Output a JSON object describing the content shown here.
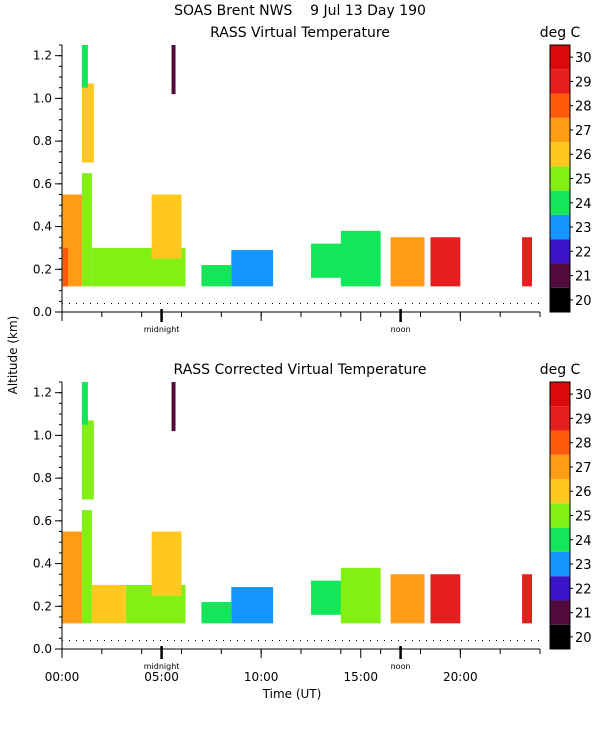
{
  "chart_data": {
    "type": "heatmap",
    "title": "SOAS Brent NWS    9 Jul 13 Day 190",
    "ylabel": "Altitude (km)",
    "xlabel": "Time (UT)",
    "xlim": [
      0,
      24
    ],
    "ylim": [
      0,
      1.25
    ],
    "x_ticks": [
      "00:00",
      "05:00",
      "10:00",
      "15:00",
      "20:00"
    ],
    "x_tick_values": [
      0,
      5,
      10,
      15,
      20
    ],
    "y_ticks": [
      "0.0",
      "0.2",
      "0.4",
      "0.6",
      "0.8",
      "1.0",
      "1.2"
    ],
    "y_tick_values": [
      0,
      0.2,
      0.4,
      0.6,
      0.8,
      1.0,
      1.2
    ],
    "markers": [
      {
        "label": "midnight",
        "x": 5.0
      },
      {
        "label": "noon",
        "x": 17.0
      }
    ],
    "colorbar": {
      "label": "deg C",
      "ticks": [
        "20",
        "21",
        "22",
        "23",
        "24",
        "25",
        "26",
        "27",
        "28",
        "29",
        "30"
      ],
      "colors": [
        "#000000",
        "#500a3c",
        "#3c14c8",
        "#1496ff",
        "#14e65a",
        "#82f014",
        "#ffc81e",
        "#ff9b14",
        "#ff5a0a",
        "#e61e1e",
        "#dc0a0a"
      ]
    },
    "panels": [
      {
        "title": "RASS Virtual Temperature",
        "cells": [
          {
            "x": [
              0.0,
              1.0
            ],
            "y": [
              0.12,
              0.55
            ],
            "value": 27.5
          },
          {
            "x": [
              0.05,
              0.3
            ],
            "y": [
              0.12,
              0.3
            ],
            "value": 28.2
          },
          {
            "x": [
              1.0,
              1.5
            ],
            "y": [
              0.12,
              0.65
            ],
            "value": 25.0
          },
          {
            "x": [
              1.5,
              6.2
            ],
            "y": [
              0.12,
              0.3
            ],
            "value": 25.2
          },
          {
            "x": [
              4.5,
              6.0
            ],
            "y": [
              0.25,
              0.55
            ],
            "value": 26.8
          },
          {
            "x": [
              1.0,
              1.6
            ],
            "y": [
              0.7,
              1.07
            ],
            "value": 26.5
          },
          {
            "x": [
              1.0,
              1.3
            ],
            "y": [
              1.05,
              1.25
            ],
            "value": 24.0
          },
          {
            "x": [
              5.5,
              5.7
            ],
            "y": [
              1.02,
              1.25
            ],
            "value": 21.5
          },
          {
            "x": [
              7.0,
              8.5
            ],
            "y": [
              0.12,
              0.22
            ],
            "value": 24.2
          },
          {
            "x": [
              8.5,
              10.6
            ],
            "y": [
              0.12,
              0.29
            ],
            "value": 23.2
          },
          {
            "x": [
              12.5,
              14.5
            ],
            "y": [
              0.16,
              0.32
            ],
            "value": 24.3
          },
          {
            "x": [
              14.0,
              16.0
            ],
            "y": [
              0.12,
              0.38
            ],
            "value": 24.5
          },
          {
            "x": [
              16.5,
              18.2
            ],
            "y": [
              0.12,
              0.35
            ],
            "value": 27.3
          },
          {
            "x": [
              18.5,
              20.0
            ],
            "y": [
              0.12,
              0.35
            ],
            "value": 29.4
          },
          {
            "x": [
              23.1,
              23.6
            ],
            "y": [
              0.12,
              0.35
            ],
            "value": 29.2
          }
        ]
      },
      {
        "title": "RASS Corrected Virtual Temperature",
        "cells": [
          {
            "x": [
              0.0,
              1.0
            ],
            "y": [
              0.12,
              0.55
            ],
            "value": 27.6
          },
          {
            "x": [
              1.0,
              1.5
            ],
            "y": [
              0.12,
              0.65
            ],
            "value": 25.0
          },
          {
            "x": [
              1.5,
              3.2
            ],
            "y": [
              0.12,
              0.3
            ],
            "value": 26.4
          },
          {
            "x": [
              3.2,
              6.2
            ],
            "y": [
              0.12,
              0.3
            ],
            "value": 25.2
          },
          {
            "x": [
              4.5,
              6.0
            ],
            "y": [
              0.25,
              0.55
            ],
            "value": 26.8
          },
          {
            "x": [
              1.0,
              1.6
            ],
            "y": [
              0.7,
              1.07
            ],
            "value": 25.8
          },
          {
            "x": [
              1.0,
              1.3
            ],
            "y": [
              1.05,
              1.25
            ],
            "value": 24.0
          },
          {
            "x": [
              5.5,
              5.7
            ],
            "y": [
              1.02,
              1.25
            ],
            "value": 21.5
          },
          {
            "x": [
              7.0,
              8.5
            ],
            "y": [
              0.12,
              0.22
            ],
            "value": 24.2
          },
          {
            "x": [
              8.5,
              10.6
            ],
            "y": [
              0.12,
              0.29
            ],
            "value": 23.2
          },
          {
            "x": [
              12.5,
              14.5
            ],
            "y": [
              0.16,
              0.32
            ],
            "value": 24.5
          },
          {
            "x": [
              14.0,
              16.0
            ],
            "y": [
              0.12,
              0.38
            ],
            "value": 25.0
          },
          {
            "x": [
              16.5,
              18.2
            ],
            "y": [
              0.12,
              0.35
            ],
            "value": 27.6
          },
          {
            "x": [
              18.5,
              20.0
            ],
            "y": [
              0.12,
              0.35
            ],
            "value": 29.6
          },
          {
            "x": [
              23.1,
              23.6
            ],
            "y": [
              0.12,
              0.35
            ],
            "value": 29.3
          }
        ]
      }
    ]
  }
}
